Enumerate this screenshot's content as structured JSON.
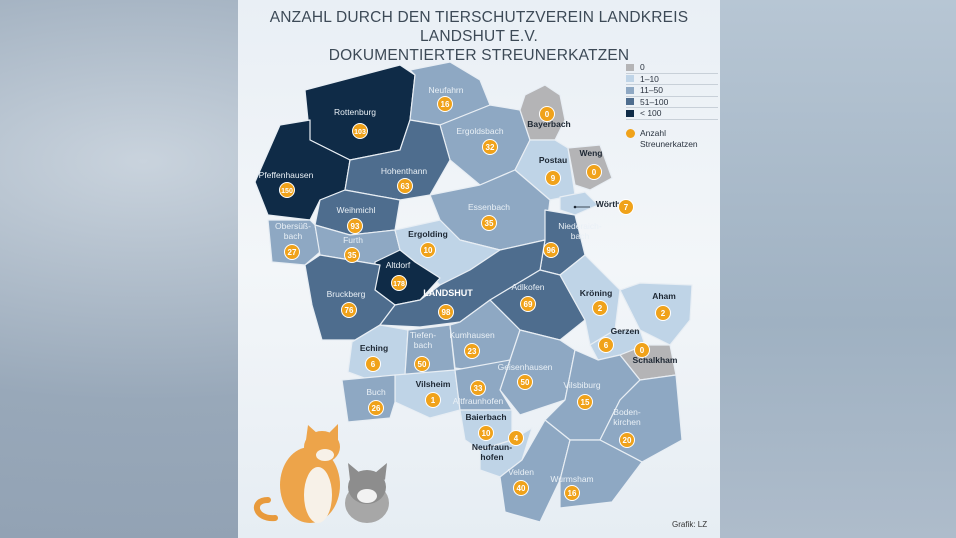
{
  "title_line1": "ANZAHL DURCH DEN TIERSCHUTZVEREIN LANDKREIS LANDSHUT E.V.",
  "title_line2": "DOKUMENTIERTER STREUNERKATZEN",
  "colors": {
    "c0": "#b4b4b6",
    "c1": "#bfd4e7",
    "c2": "#8ea8c3",
    "c3": "#4e6d8e",
    "c4": "#0f2b47",
    "badge": "#f0a21a",
    "border": "#e8eef4"
  },
  "legend": {
    "items": [
      {
        "label": "0",
        "color": "c0"
      },
      {
        "label": "1–10",
        "color": "c1"
      },
      {
        "label": "11–50",
        "color": "c2"
      },
      {
        "label": "51–100",
        "color": "c3"
      },
      {
        "label": "< 100",
        "color": "c4"
      }
    ],
    "badge_label": "Anzahl Streunerkatzen"
  },
  "regions": [
    {
      "name": "Rottenburg",
      "value": "103",
      "cat": "c4"
    },
    {
      "name": "Pfeffenhausen",
      "value": "150",
      "cat": "c4"
    },
    {
      "name": "Neufahrn",
      "value": "16",
      "cat": "c2"
    },
    {
      "name": "Ergoldsbach",
      "value": "32",
      "cat": "c2"
    },
    {
      "name": "Bayerbach",
      "value": "0",
      "cat": "c0"
    },
    {
      "name": "Postau",
      "value": "9",
      "cat": "c1"
    },
    {
      "name": "Weng",
      "value": "0",
      "cat": "c0"
    },
    {
      "name": "Wörth",
      "value": "7",
      "cat": "c1"
    },
    {
      "name": "Hohenthann",
      "value": "63",
      "cat": "c3"
    },
    {
      "name": "Essenbach",
      "value": "35",
      "cat": "c2"
    },
    {
      "name": "Niederaich-bach",
      "value": "96",
      "cat": "c3"
    },
    {
      "name": "Weihmichl",
      "value": "93",
      "cat": "c3"
    },
    {
      "name": "Obersüß-bach",
      "value": "27",
      "cat": "c2"
    },
    {
      "name": "Furth",
      "value": "35",
      "cat": "c2"
    },
    {
      "name": "Ergolding",
      "value": "10",
      "cat": "c1"
    },
    {
      "name": "Altdorf",
      "value": "178",
      "cat": "c4"
    },
    {
      "name": "Bruckberg",
      "value": "76",
      "cat": "c3"
    },
    {
      "name": "LANDSHUT",
      "value": "98",
      "cat": "c3"
    },
    {
      "name": "Adlkofen",
      "value": "69",
      "cat": "c3"
    },
    {
      "name": "Kröning",
      "value": "2",
      "cat": "c1"
    },
    {
      "name": "Aham",
      "value": "2",
      "cat": "c1"
    },
    {
      "name": "Gerzen",
      "value": "6",
      "cat": "c1"
    },
    {
      "name": "Schalkham",
      "value": "0",
      "cat": "c0"
    },
    {
      "name": "Eching",
      "value": "6",
      "cat": "c1"
    },
    {
      "name": "Tiefen-bach",
      "value": "50",
      "cat": "c2"
    },
    {
      "name": "Kumhausen",
      "value": "23",
      "cat": "c2"
    },
    {
      "name": "Geisenhausen",
      "value": "50",
      "cat": "c2"
    },
    {
      "name": "Vilsheim",
      "value": "1",
      "cat": "c1"
    },
    {
      "name": "Altfraunhofen",
      "value": "33",
      "cat": "c2"
    },
    {
      "name": "Buch",
      "value": "26",
      "cat": "c2"
    },
    {
      "name": "Baierbach",
      "value": "10",
      "cat": "c1"
    },
    {
      "name": "Neufraun-hofen",
      "value": "4",
      "cat": "c1"
    },
    {
      "name": "Vilsbiburg",
      "value": "15",
      "cat": "c2"
    },
    {
      "name": "Boden-kirchen",
      "value": "20",
      "cat": "c2"
    },
    {
      "name": "Velden",
      "value": "40",
      "cat": "c2"
    },
    {
      "name": "Wurmsham",
      "value": "16",
      "cat": "c2"
    }
  ],
  "credit": "Grafik: LZ"
}
